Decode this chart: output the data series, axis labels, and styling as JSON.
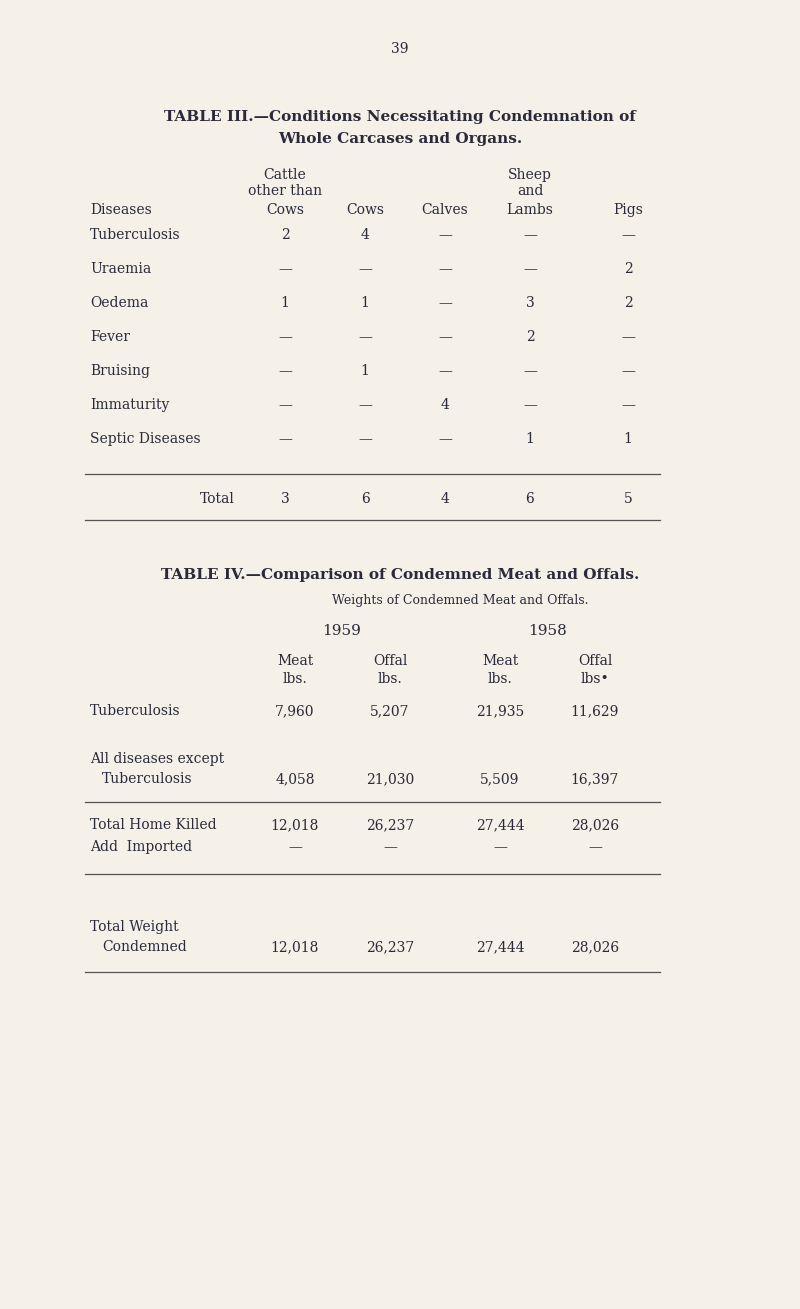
{
  "bg_color": "#f5f0e8",
  "page_number": "39",
  "table3": {
    "title_line1": "TABLE III.—Conditions Necessitating Condemnation of",
    "title_line2": "Whole Carcases and Organs.",
    "rows": [
      [
        "Tuberculosis",
        "2",
        "4",
        "—",
        "—",
        "—"
      ],
      [
        "Uraemia",
        "—",
        "—",
        "—",
        "—",
        "2"
      ],
      [
        "Oedema",
        "1",
        "1",
        "—",
        "3",
        "2"
      ],
      [
        "Fever",
        "—",
        "—",
        "—",
        "2",
        "—"
      ],
      [
        "Bruising",
        "—",
        "1",
        "—",
        "—",
        "—"
      ],
      [
        "Immaturity",
        "—",
        "—",
        "4",
        "—",
        "—"
      ],
      [
        "Septic Diseases",
        "—",
        "—",
        "—",
        "1",
        "1"
      ]
    ],
    "total_row": [
      "Total",
      "3",
      "6",
      "4",
      "6",
      "5"
    ]
  },
  "table4": {
    "title": "TABLE IV.—Comparison of Condemned Meat and Offals.",
    "subtitle": "Weights of Condemned Meat and Offals.",
    "t4_row1_label": "Tuberculosis",
    "t4_row1_vals": [
      "7,960",
      "5,207",
      "21,935",
      "11,629"
    ],
    "t4_row2_label1": "All diseases except",
    "t4_row2_label2": "   Tuberculosis",
    "t4_row2_vals": [
      "4,058",
      "21,030",
      "5,509",
      "16,397"
    ],
    "t4_row3_label1": "Total Home Killed",
    "t4_row3_label2": "Add  Imported",
    "t4_row3_vals1": [
      "12,018",
      "26,237",
      "27,444",
      "28,026"
    ],
    "t4_row3_vals2": [
      "—",
      "—",
      "—",
      "—"
    ],
    "t4_row4_label1": "Total Weight",
    "t4_row4_label2": "   Condemned",
    "t4_row4_vals": [
      "12,018",
      "26,237",
      "27,444",
      "28,026"
    ]
  },
  "text_color": "#2a2a3a",
  "line_color": "#555555",
  "font_size_title": 11,
  "font_size_body": 10,
  "font_size_page": 10
}
